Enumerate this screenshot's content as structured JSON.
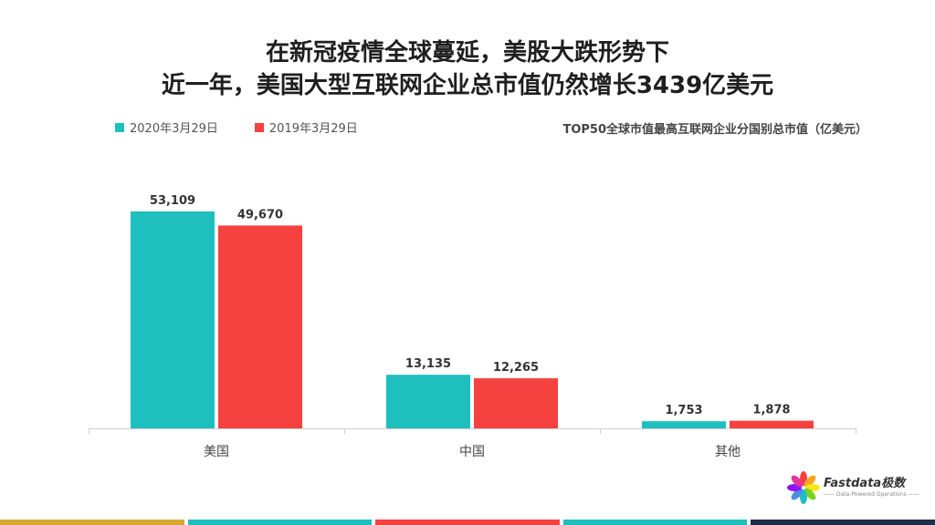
{
  "title": {
    "line1": "在新冠疫情全球蔓延，美股大跌形势下",
    "line2": "近一年，美国大型互联网企业总市值仍然增长3439亿美元"
  },
  "subtitle": "TOP50全球市值最高互联网企业分国别总市值（亿美元）",
  "legend": [
    {
      "label": "2020年3月29日",
      "color": "#1FBFBF"
    },
    {
      "label": "2019年3月29日",
      "color": "#F5413F"
    }
  ],
  "chart_data": {
    "type": "bar",
    "categories": [
      "美国",
      "中国",
      "其他"
    ],
    "series": [
      {
        "name": "2020年3月29日",
        "values": [
          53109,
          13135,
          1753
        ],
        "labels": [
          "53,109",
          "13,135",
          "1,753"
        ],
        "color": "#1FBFBF"
      },
      {
        "name": "2019年3月29日",
        "values": [
          49670,
          12265,
          1878
        ],
        "labels": [
          "49,670",
          "12,265",
          "1,878"
        ],
        "color": "#F5413F"
      }
    ],
    "ylim": [
      0,
      53109
    ],
    "grid": false,
    "legend_position": "top-left"
  },
  "logo": {
    "name": "Fastdata极数",
    "tagline": "—— Data-Powered Operations ——",
    "icon": "pinwheel-logo-icon"
  },
  "footer_colors": [
    "#D8A932",
    "#1FBFBF",
    "#F5413F",
    "#1FBFBF",
    "#1F2F4A"
  ]
}
